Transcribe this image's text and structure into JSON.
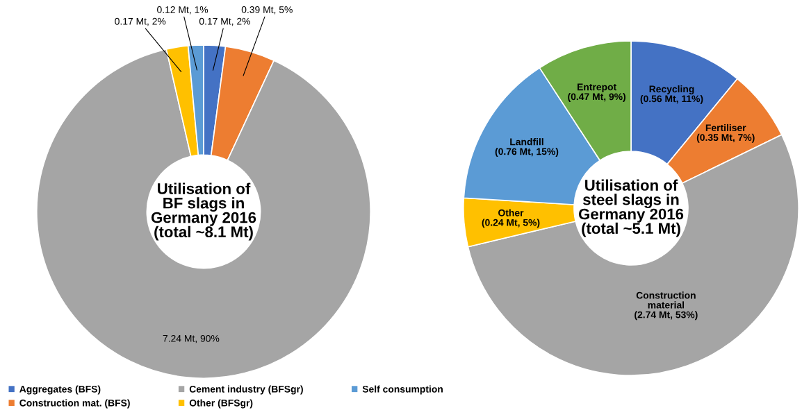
{
  "chart_data": [
    {
      "type": "donut",
      "title": "Utilisation of\nBF slags in\nGermany 2016\n(total ~8.1 Mt)",
      "categories": [
        "Aggregates (BFS)",
        "Construction mat. (BFS)",
        "Cement industry (BFSgr)",
        "Other (BFSgr)",
        "Self consumption"
      ],
      "values": [
        0.17,
        0.39,
        7.24,
        0.17,
        0.12
      ],
      "colors": [
        "#4472c4",
        "#ed7d31",
        "#a5a5a5",
        "#ffc000",
        "#5b9bd5"
      ],
      "value_labels": [
        "0.17 Mt, 2%",
        "0.39 Mt, 5%",
        "7.24 Mt, 90%",
        "0.17 Mt, 2%",
        "0.12 Mt, 1%"
      ],
      "legend": "bottom"
    },
    {
      "type": "donut",
      "title": "Utilisation of\nsteel slags in\nGermany 2016\n(total ~5.1 Mt)",
      "categories": [
        "Recycling",
        "Fertiliser",
        "Construction\nmaterial",
        "Other",
        "Landfill",
        "Entrepot"
      ],
      "values": [
        0.56,
        0.35,
        2.74,
        0.24,
        0.76,
        0.47
      ],
      "colors": [
        "#4472c4",
        "#ed7d31",
        "#a5a5a5",
        "#ffc000",
        "#5b9bd5",
        "#70ad47"
      ],
      "value_labels": [
        "(0.56 Mt, 11%)",
        "(0.35 Mt, 7%)",
        "(2.74 Mt, 53%)",
        "(0.24 Mt, 5%)",
        "(0.76 Mt, 15%)",
        "(0.47 Mt, 9%)"
      ],
      "legend": false
    }
  ]
}
